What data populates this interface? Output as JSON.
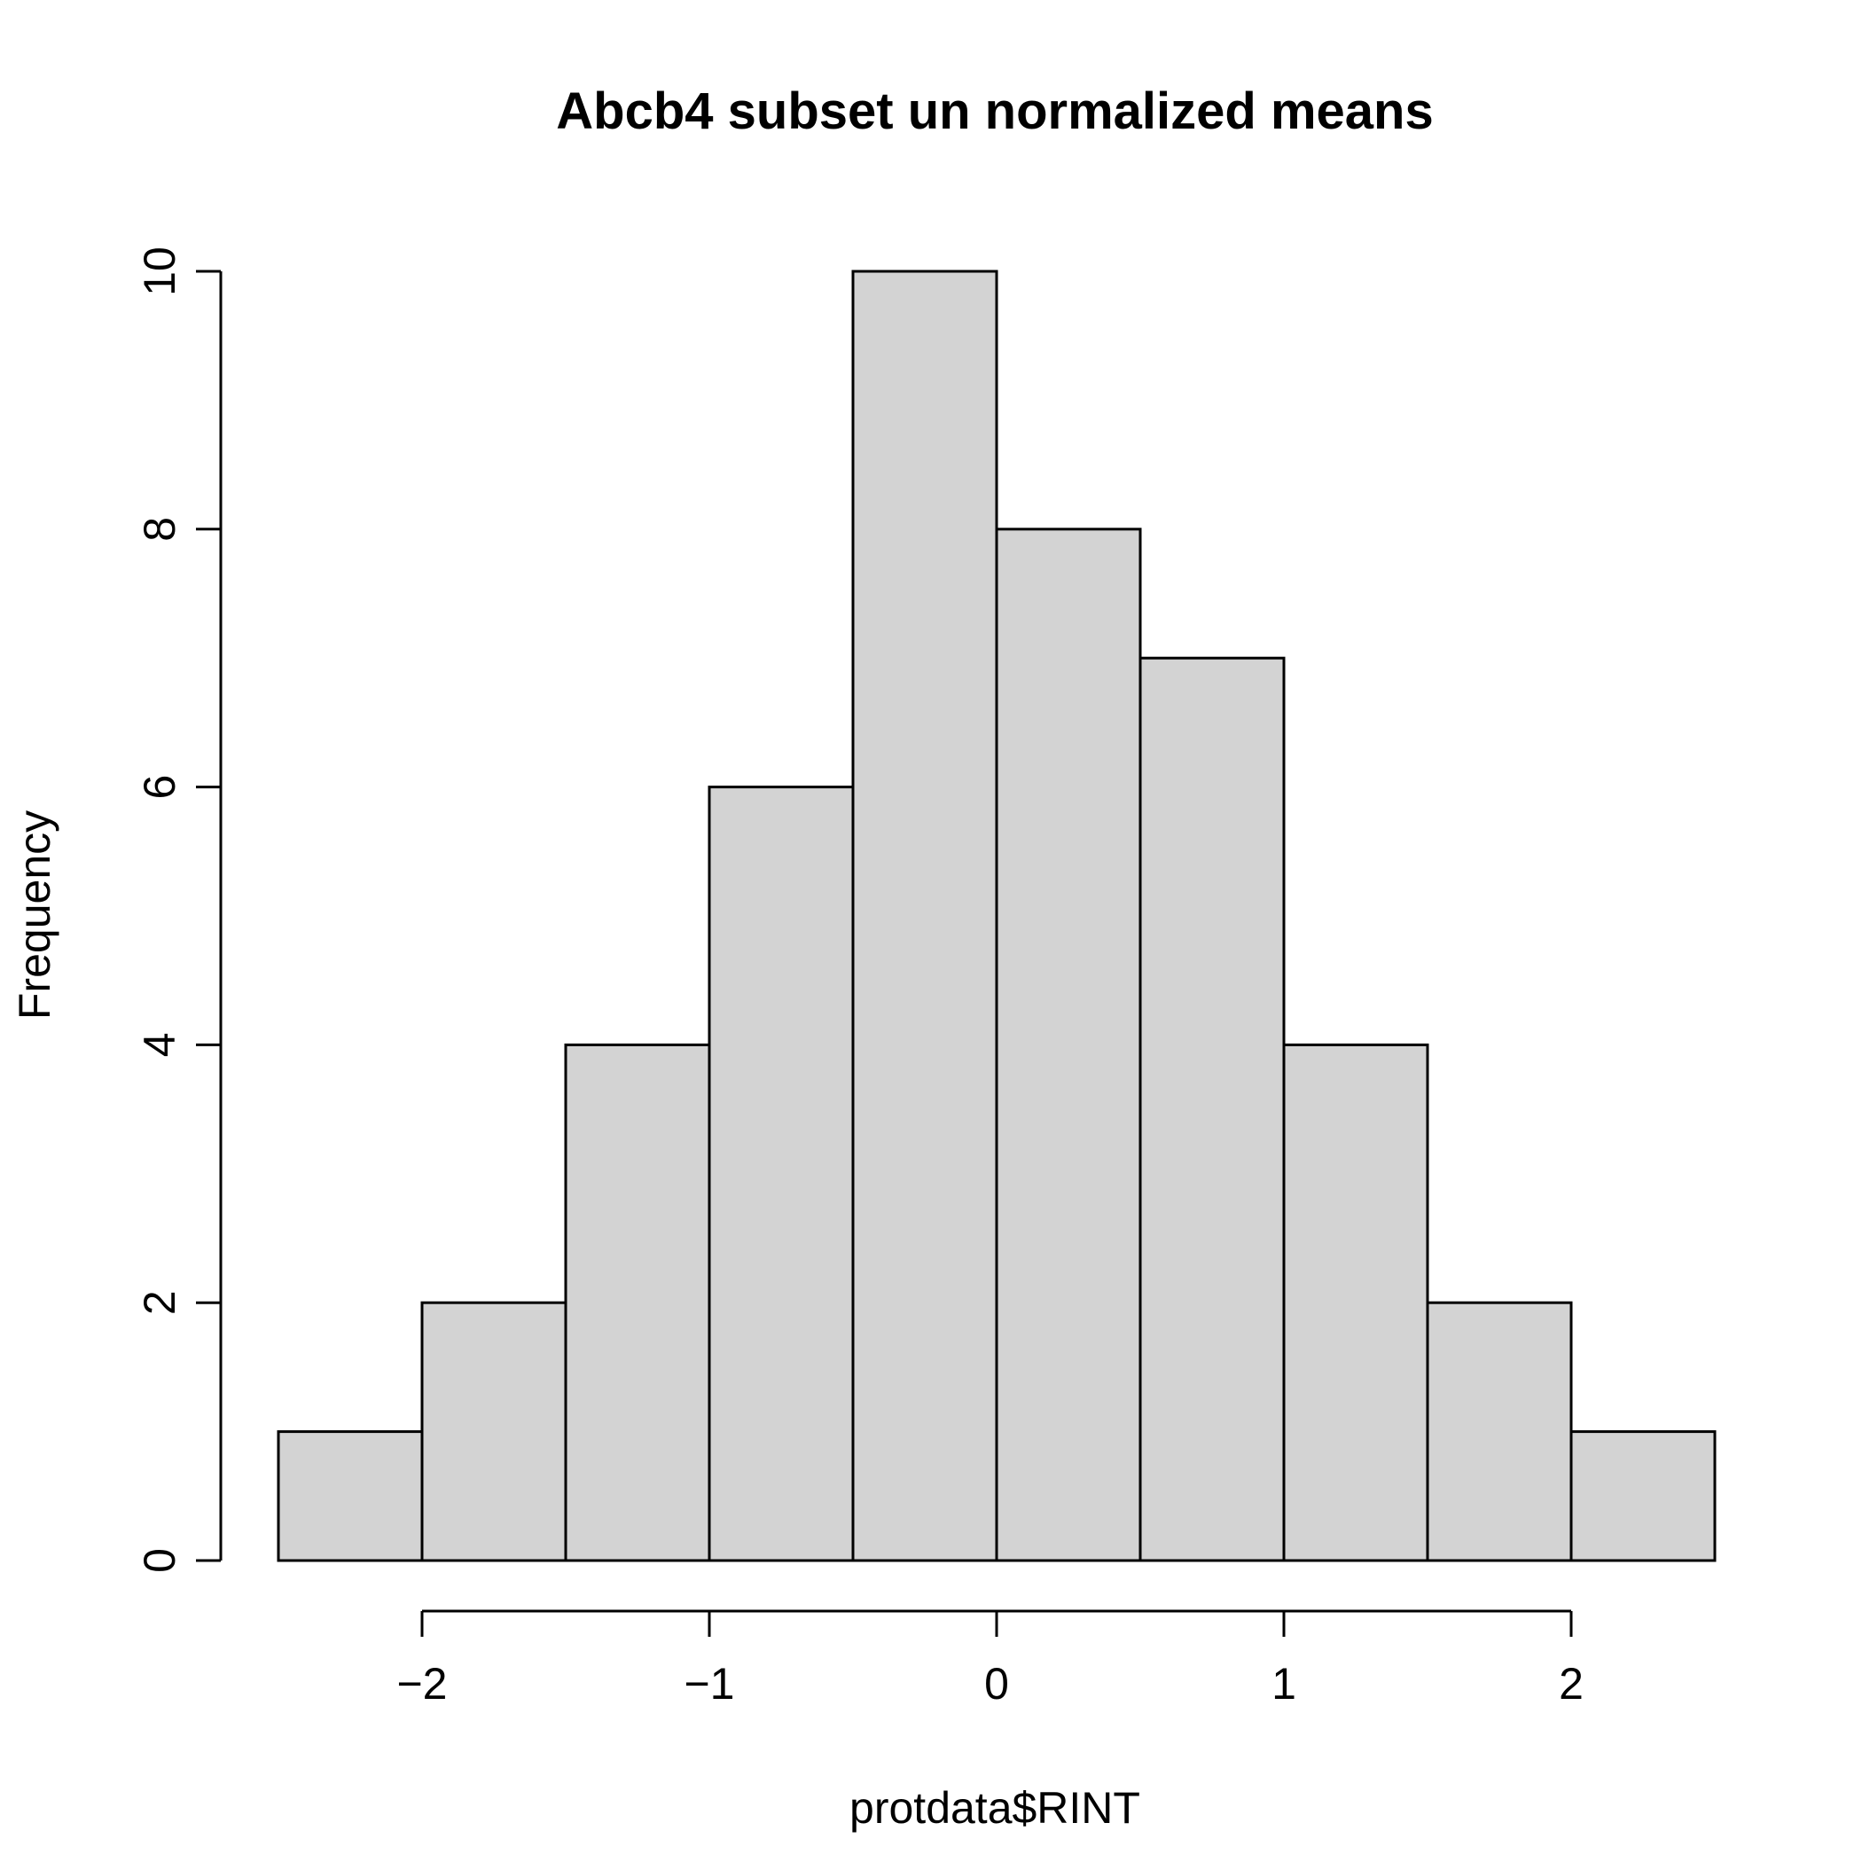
{
  "chart_data": {
    "type": "bar",
    "title": "Abcb4 subset un normalized means",
    "xlabel": "protdata$RINT",
    "ylabel": "Frequency",
    "bins": [
      {
        "x0": -2.5,
        "x1": -2.0,
        "count": 1
      },
      {
        "x0": -2.0,
        "x1": -1.5,
        "count": 2
      },
      {
        "x0": -1.5,
        "x1": -1.0,
        "count": 4
      },
      {
        "x0": -1.0,
        "x1": -0.5,
        "count": 6
      },
      {
        "x0": -0.5,
        "x1": 0.0,
        "count": 10
      },
      {
        "x0": 0.0,
        "x1": 0.5,
        "count": 8
      },
      {
        "x0": 0.5,
        "x1": 1.0,
        "count": 7
      },
      {
        "x0": 1.0,
        "x1": 1.5,
        "count": 4
      },
      {
        "x0": 1.5,
        "x1": 2.0,
        "count": 2
      },
      {
        "x0": 2.0,
        "x1": 2.5,
        "count": 1
      }
    ],
    "xticks": [
      -2,
      -1,
      0,
      1,
      2
    ],
    "xtick_labels": [
      "−2",
      "−1",
      "0",
      "1",
      "2"
    ],
    "yticks": [
      0,
      2,
      4,
      6,
      8,
      10
    ],
    "ytick_labels": [
      "0",
      "2",
      "4",
      "6",
      "8",
      "10"
    ],
    "xlim": [
      -2.5,
      2.5
    ],
    "ylim": [
      0,
      10
    ],
    "grid": false,
    "legend": "none",
    "colors": {
      "bar_fill": "#d3d3d3",
      "bar_edge": "#000000",
      "background": "#ffffff"
    }
  }
}
